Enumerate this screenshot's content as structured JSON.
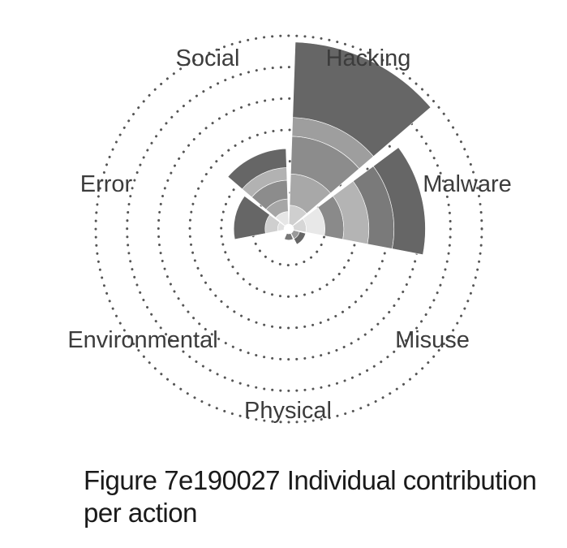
{
  "chart_data": {
    "type": "radial-bar",
    "categories": [
      "Hacking",
      "Malware",
      "Misuse",
      "Physical",
      "Environmental",
      "Error",
      "Social"
    ],
    "totals": [
      29,
      21,
      2,
      1,
      0,
      8,
      12
    ],
    "value_max": 30,
    "segments": {
      "Hacking": [
        {
          "r0": 0,
          "r1": 3,
          "color": "#cfcfcf"
        },
        {
          "r0": 3,
          "r1": 8,
          "color": "#a8a8a8"
        },
        {
          "r0": 8,
          "r1": 14,
          "color": "#8c8c8c"
        },
        {
          "r0": 14,
          "r1": 17,
          "color": "#9e9e9e"
        },
        {
          "r0": 17,
          "r1": 29,
          "color": "#666666"
        }
      ],
      "Malware": [
        {
          "r0": 0,
          "r1": 2,
          "color": "#d6d6d6"
        },
        {
          "r0": 2,
          "r1": 5,
          "color": "#e8e8e8"
        },
        {
          "r0": 5,
          "r1": 8,
          "color": "#8a8a8a"
        },
        {
          "r0": 8,
          "r1": 12,
          "color": "#b4b4b4"
        },
        {
          "r0": 12,
          "r1": 16,
          "color": "#7a7a7a"
        },
        {
          "r0": 16,
          "r1": 21,
          "color": "#666666"
        }
      ],
      "Misuse": [
        {
          "r0": 0,
          "r1": 1,
          "color": "#9a9a9a"
        },
        {
          "r0": 1,
          "r1": 2,
          "color": "#666666"
        }
      ],
      "Physical": [
        {
          "r0": 0,
          "r1": 1,
          "color": "#777777"
        }
      ],
      "Environmental": [],
      "Error": [
        {
          "r0": 0,
          "r1": 1,
          "color": "#e0e0e0"
        },
        {
          "r0": 1,
          "r1": 3,
          "color": "#cfcfcf"
        },
        {
          "r0": 3,
          "r1": 8,
          "color": "#666666"
        }
      ],
      "Social": [
        {
          "r0": 0,
          "r1": 2,
          "color": "#e6e6e6"
        },
        {
          "r0": 2,
          "r1": 4,
          "color": "#a6a6a6"
        },
        {
          "r0": 4,
          "r1": 7,
          "color": "#8c8c8c"
        },
        {
          "r0": 7,
          "r1": 9,
          "color": "#b2b2b2"
        },
        {
          "r0": 9,
          "r1": 12,
          "color": "#666666"
        }
      ]
    },
    "grid": "dotted concentric circles",
    "grid_levels": [
      5,
      10,
      15,
      20,
      25,
      30
    ],
    "title": "Figure 7e190027 Individual contribution per action"
  },
  "labels": {
    "hacking": "Hacking",
    "malware": "Malware",
    "misuse": "Misuse",
    "physical": "Physical",
    "environmental": "Environmental",
    "error": "Error",
    "social": "Social"
  },
  "caption": {
    "line1": "Figure 7e190027 Individual contribution",
    "line2": "per action"
  },
  "colors": {
    "grid": "#555555",
    "label": "#3c3c3c",
    "caption": "#1a1a1a"
  }
}
